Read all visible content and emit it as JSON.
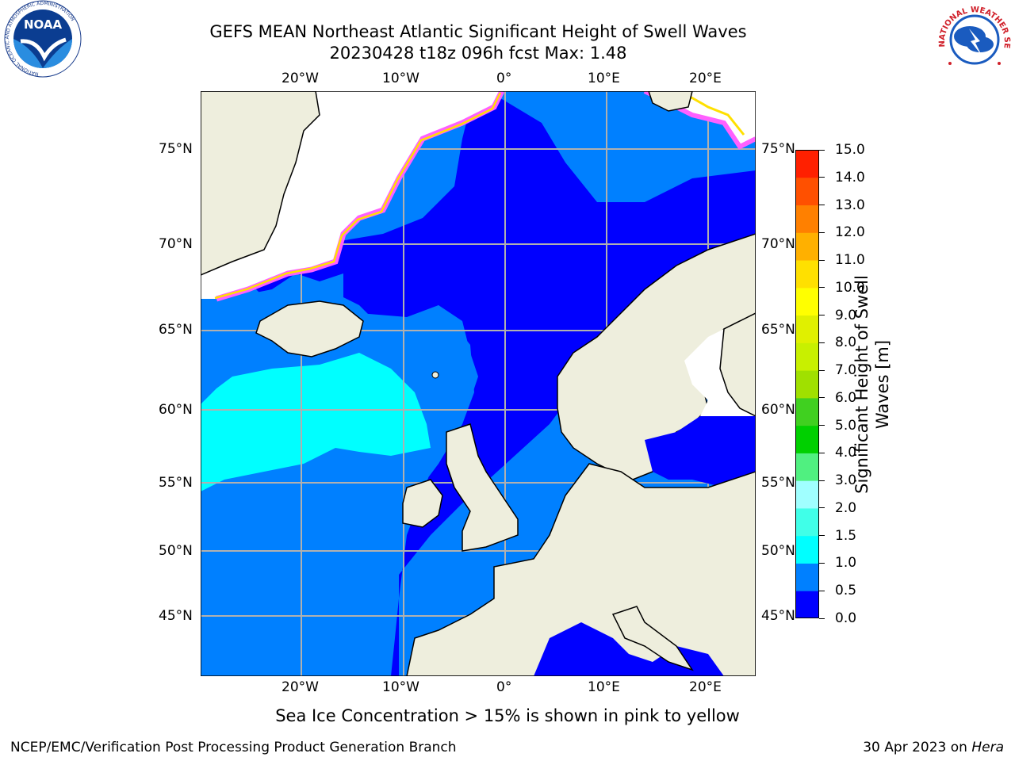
{
  "header": {
    "title_line1": "GEFS MEAN Northeast Atlantic Significant Height of Swell Waves",
    "title_line2": "20230428 t18z 096h fcst   Max: 1.48"
  },
  "logos": {
    "left": "noaa-logo",
    "left_ring_text": "NATIONAL OCEANIC AND ATMOSPHERIC ADMINISTRATION",
    "left_center_text": "NOAA",
    "left_bottom_text": "U.S. DEPARTMENT OF COMMERCE",
    "right": "nws-logo",
    "right_ring_text": "NATIONAL WEATHER SERVICE"
  },
  "map": {
    "lon_ticks_top": [
      "20°W",
      "10°W",
      "0°",
      "10°E",
      "20°E"
    ],
    "lon_ticks_bottom": [
      "20°W",
      "10°W",
      "0°",
      "10°E",
      "20°E"
    ],
    "lat_ticks_left": [
      "75°N",
      "70°N",
      "65°N",
      "60°N",
      "55°N",
      "50°N",
      "45°N"
    ],
    "lat_ticks_right": [
      "75°N",
      "70°N",
      "65°N",
      "60°N",
      "55°N",
      "50°N",
      "45°N"
    ],
    "colors": {
      "land": "#eeeedd",
      "ocean_0_05": "#0000ff",
      "ocean_05_10": "#0080ff",
      "ocean_10_15": "#00ffff",
      "ice_low": "#ff40ff",
      "ice_high": "#ffff00",
      "grid": "#b0b0b0"
    }
  },
  "colorbar": {
    "title": "Significant Height of Swell Waves [m]",
    "tick_labels": [
      "0.0",
      "0.5",
      "1.0",
      "1.5",
      "2.0",
      "3.0",
      "4.0",
      "5.0",
      "6.0",
      "7.0",
      "8.0",
      "9.0",
      "10.0",
      "11.0",
      "12.0",
      "13.0",
      "14.0",
      "15.0"
    ],
    "bin_colors": [
      "#0000ff",
      "#0080ff",
      "#00ffff",
      "#40ffe8",
      "#a0ffff",
      "#50f080",
      "#00d000",
      "#40d020",
      "#a0e000",
      "#c8f000",
      "#e0f000",
      "#ffff00",
      "#ffe000",
      "#ffb000",
      "#ff8000",
      "#ff5000",
      "#ff2000"
    ]
  },
  "footer": {
    "note": "Sea Ice Concentration > 15% is shown in pink to yellow",
    "credit": "NCEP/EMC/Verification Post Processing Product Generation Branch",
    "date": "30 Apr 2023 on ",
    "machine": "Hera"
  }
}
